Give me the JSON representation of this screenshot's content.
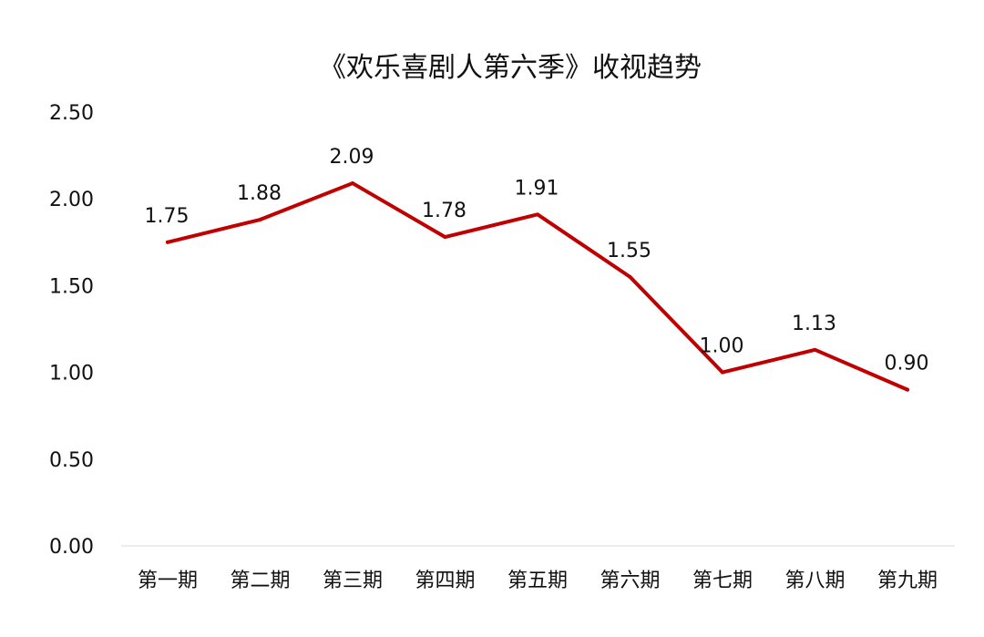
{
  "chart_data": {
    "type": "line",
    "title": "《欢乐喜剧人第六季》收视趋势",
    "xlabel": "",
    "ylabel": "",
    "categories": [
      "第一期",
      "第二期",
      "第三期",
      "第四期",
      "第五期",
      "第六期",
      "第七期",
      "第八期",
      "第九期"
    ],
    "series": [
      {
        "values": [
          1.75,
          1.88,
          2.09,
          1.78,
          1.91,
          1.55,
          1.0,
          1.13,
          0.9
        ],
        "color": "#C00000"
      }
    ],
    "data_labels": [
      "1.75",
      "1.88",
      "2.09",
      "1.78",
      "1.91",
      "1.55",
      "1.00",
      "1.13",
      "0.90"
    ],
    "ylim": [
      0,
      2.5
    ],
    "yticks": [
      "0.00",
      "0.50",
      "1.00",
      "1.50",
      "2.00",
      "2.50"
    ],
    "grid": false,
    "legend": "none"
  }
}
